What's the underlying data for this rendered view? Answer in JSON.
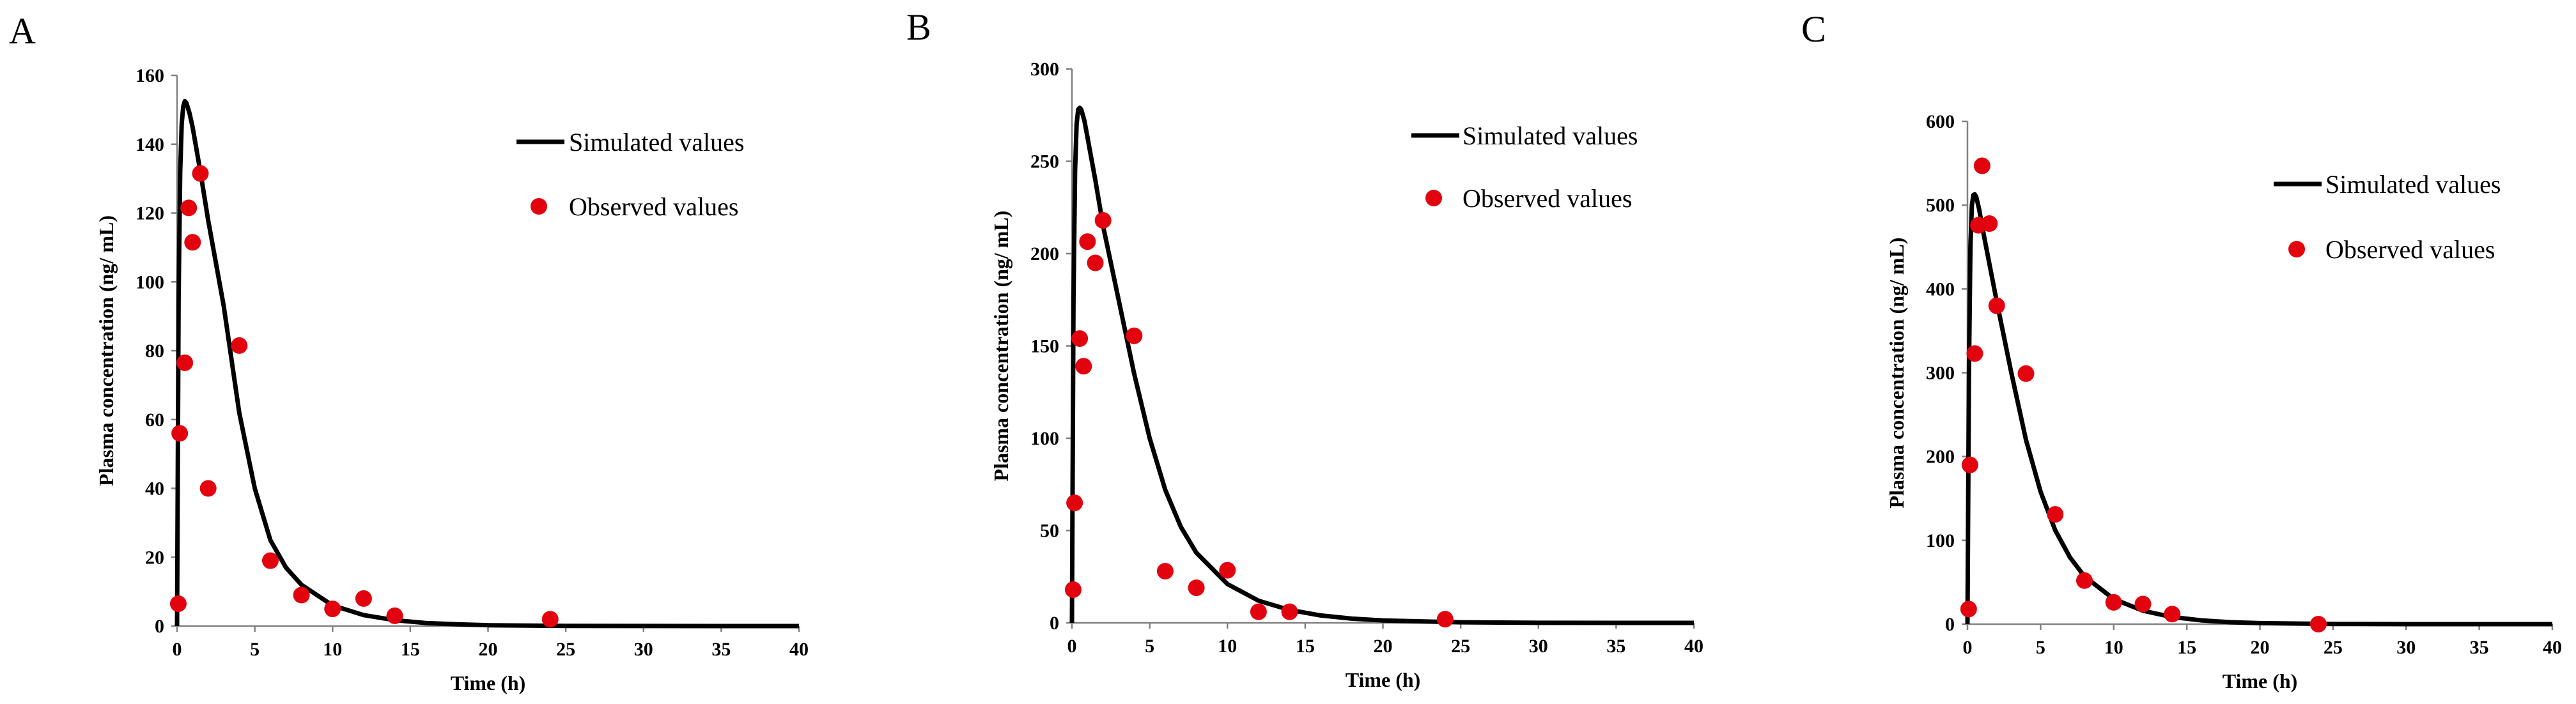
{
  "figure": {
    "legend": {
      "simulated": "Simulated values",
      "observed": "Observed values"
    },
    "colors": {
      "simulated": "#000000",
      "observed": "#e3030f",
      "axis": "#808080"
    }
  },
  "chart_data": [
    {
      "type": "line",
      "panel": "A",
      "xlabel": "Time (h)",
      "ylabel": "Plasma concentration (ng/ mL)",
      "xlim": [
        0,
        40
      ],
      "ylim": [
        0,
        160
      ],
      "xticks": [
        0,
        5,
        10,
        15,
        20,
        25,
        30,
        35,
        40
      ],
      "yticks": [
        0,
        20,
        40,
        60,
        80,
        100,
        120,
        140,
        160
      ],
      "legend_position": "top-right",
      "series": [
        {
          "name": "Simulated values",
          "kind": "line",
          "x": [
            0,
            0.1,
            0.2,
            0.3,
            0.4,
            0.5,
            0.6,
            0.8,
            1.0,
            1.5,
            2,
            3,
            4,
            5,
            6,
            7,
            8,
            10,
            12,
            14,
            16,
            18,
            20,
            25,
            30,
            35,
            40
          ],
          "y": [
            0,
            95,
            132,
            146,
            151,
            152.5,
            152,
            149,
            145,
            132,
            118,
            93,
            62,
            40,
            25,
            17,
            12,
            6,
            3.2,
            1.7,
            0.9,
            0.5,
            0.25,
            0.05,
            0.01,
            0,
            0
          ]
        },
        {
          "name": "Observed values",
          "kind": "scatter",
          "x": [
            0.08,
            0.17,
            0.5,
            0.75,
            1.0,
            1.5,
            2,
            4,
            6,
            8,
            10,
            12,
            14,
            24
          ],
          "y": [
            6.5,
            56,
            76.5,
            121.5,
            111.5,
            131.5,
            40,
            81.5,
            19,
            9,
            5,
            8,
            3,
            2
          ]
        }
      ]
    },
    {
      "type": "line",
      "panel": "B",
      "xlabel": "Time (h)",
      "ylabel": "Plasma concentration (ng/ mL)",
      "xlim": [
        0,
        40
      ],
      "ylim": [
        0,
        300
      ],
      "xticks": [
        0,
        5,
        10,
        15,
        20,
        25,
        30,
        35,
        40
      ],
      "yticks": [
        0,
        50,
        100,
        150,
        200,
        250,
        300
      ],
      "legend_position": "top-right",
      "series": [
        {
          "name": "Simulated values",
          "kind": "line",
          "x": [
            0,
            0.1,
            0.2,
            0.3,
            0.4,
            0.5,
            0.6,
            0.8,
            1.0,
            1.5,
            2,
            3,
            4,
            5,
            6,
            7,
            8,
            10,
            12,
            14,
            16,
            18,
            20,
            25,
            30,
            35,
            40
          ],
          "y": [
            0,
            175,
            245,
            270,
            278,
            279,
            278,
            272,
            263,
            240,
            215,
            175,
            135,
            100,
            72,
            52,
            38,
            21,
            12,
            7,
            4,
            2.3,
            1.3,
            0.3,
            0.05,
            0,
            0
          ]
        },
        {
          "name": "Observed values",
          "kind": "scatter",
          "x": [
            0.08,
            0.17,
            0.5,
            0.75,
            1.0,
            1.5,
            2,
            4,
            6,
            8,
            10,
            12,
            14,
            24
          ],
          "y": [
            18,
            65,
            154,
            139,
            206.5,
            195,
            218,
            155.5,
            28,
            19,
            28.5,
            6,
            6,
            2
          ]
        }
      ]
    },
    {
      "type": "line",
      "panel": "C",
      "xlabel": "Time (h)",
      "ylabel": "Plasma concentration (ng/ mL)",
      "xlim": [
        0,
        40
      ],
      "ylim": [
        0,
        600
      ],
      "xticks": [
        0,
        5,
        10,
        15,
        20,
        25,
        30,
        35,
        40
      ],
      "yticks": [
        0,
        100,
        200,
        300,
        400,
        500,
        600
      ],
      "legend_position": "top-right",
      "series": [
        {
          "name": "Simulated values",
          "kind": "line",
          "x": [
            0,
            0.1,
            0.2,
            0.3,
            0.4,
            0.5,
            0.6,
            0.8,
            1.0,
            1.5,
            2,
            3,
            4,
            5,
            6,
            7,
            8,
            10,
            12,
            14,
            16,
            18,
            20,
            25,
            30,
            35,
            40
          ],
          "y": [
            0,
            300,
            450,
            500,
            512,
            513,
            510,
            495,
            475,
            430,
            385,
            300,
            220,
            158,
            112,
            80,
            57,
            30,
            16,
            8.5,
            4.5,
            2.3,
            1.2,
            0.2,
            0.03,
            0,
            0
          ]
        },
        {
          "name": "Observed values",
          "kind": "scatter",
          "x": [
            0.08,
            0.17,
            0.5,
            0.75,
            1.0,
            1.5,
            2,
            4,
            6,
            8,
            10,
            12,
            14,
            24
          ],
          "y": [
            18,
            190,
            323,
            476,
            547,
            478,
            380,
            299,
            131,
            52,
            26,
            24,
            12,
            0
          ]
        }
      ]
    }
  ]
}
